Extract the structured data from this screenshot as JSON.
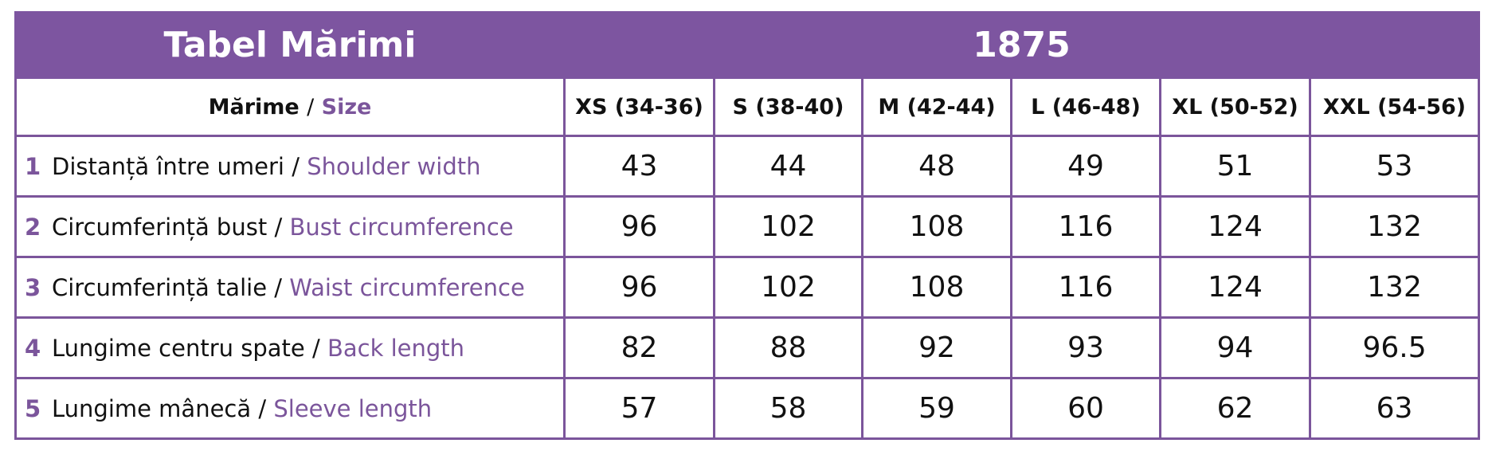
{
  "header": {
    "title": "Tabel Mărimi",
    "code": "1875"
  },
  "separator": "/",
  "table": {
    "size_label_ro": "Mărime",
    "size_label_en": "Size",
    "columns": [
      "XS (34-36)",
      "S (38-40)",
      "M (42-44)",
      "L (46-48)",
      "XL (50-52)",
      "XXL (54-56)"
    ],
    "rows": [
      {
        "number": "1",
        "ro": "Distanță între umeri",
        "en": "Shoulder width",
        "values": [
          43,
          44,
          48,
          49,
          51,
          53
        ]
      },
      {
        "number": "2",
        "ro": "Circumferință bust",
        "en": "Bust circumference",
        "values": [
          96,
          102,
          108,
          116,
          124,
          132
        ]
      },
      {
        "number": "3",
        "ro": "Circumferință talie",
        "en": "Waist circumference",
        "values": [
          96,
          102,
          108,
          116,
          124,
          132
        ]
      },
      {
        "number": "4",
        "ro": "Lungime centru spate",
        "en": "Back length",
        "values": [
          82,
          88,
          92,
          93,
          94,
          96.5
        ]
      },
      {
        "number": "5",
        "ro": "Lungime mânecă",
        "en": "Sleeve length",
        "values": [
          57,
          58,
          59,
          60,
          62,
          63
        ]
      }
    ]
  }
}
